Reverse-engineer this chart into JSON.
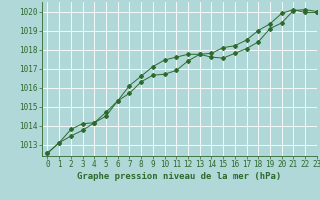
{
  "xlabel": "Graphe pression niveau de la mer (hPa)",
  "xlim": [
    -0.5,
    23
  ],
  "ylim": [
    1012.4,
    1020.5
  ],
  "yticks": [
    1013,
    1014,
    1015,
    1016,
    1017,
    1018,
    1019,
    1020
  ],
  "xticks": [
    0,
    1,
    2,
    3,
    4,
    5,
    6,
    7,
    8,
    9,
    10,
    11,
    12,
    13,
    14,
    15,
    16,
    17,
    18,
    19,
    20,
    21,
    22,
    23
  ],
  "bg_color": "#b0d8d8",
  "grid_color": "#ffffff",
  "line_color": "#2d6a2d",
  "line1_x": [
    0,
    1,
    2,
    3,
    4,
    5,
    6,
    7,
    8,
    9,
    10,
    11,
    12,
    13,
    14,
    15,
    16,
    17,
    18,
    19,
    20,
    21,
    22,
    23
  ],
  "line1_y": [
    1012.55,
    1013.1,
    1013.45,
    1013.75,
    1014.15,
    1014.7,
    1015.3,
    1016.1,
    1016.6,
    1017.1,
    1017.45,
    1017.6,
    1017.75,
    1017.75,
    1017.6,
    1017.55,
    1017.8,
    1018.05,
    1018.4,
    1019.1,
    1019.4,
    1020.05,
    1020.1,
    1020.0
  ],
  "line2_x": [
    0,
    1,
    2,
    3,
    4,
    5,
    6,
    7,
    8,
    9,
    10,
    11,
    12,
    13,
    14,
    15,
    16,
    17,
    18,
    19,
    20,
    21,
    22,
    23
  ],
  "line2_y": [
    1012.55,
    1013.1,
    1013.8,
    1014.1,
    1014.15,
    1014.5,
    1015.3,
    1015.7,
    1016.3,
    1016.65,
    1016.7,
    1016.9,
    1017.4,
    1017.75,
    1017.8,
    1018.1,
    1018.2,
    1018.5,
    1019.0,
    1019.35,
    1019.9,
    1020.1,
    1019.95,
    1019.95
  ],
  "tick_fontsize": 5.5,
  "label_fontsize": 6.5
}
